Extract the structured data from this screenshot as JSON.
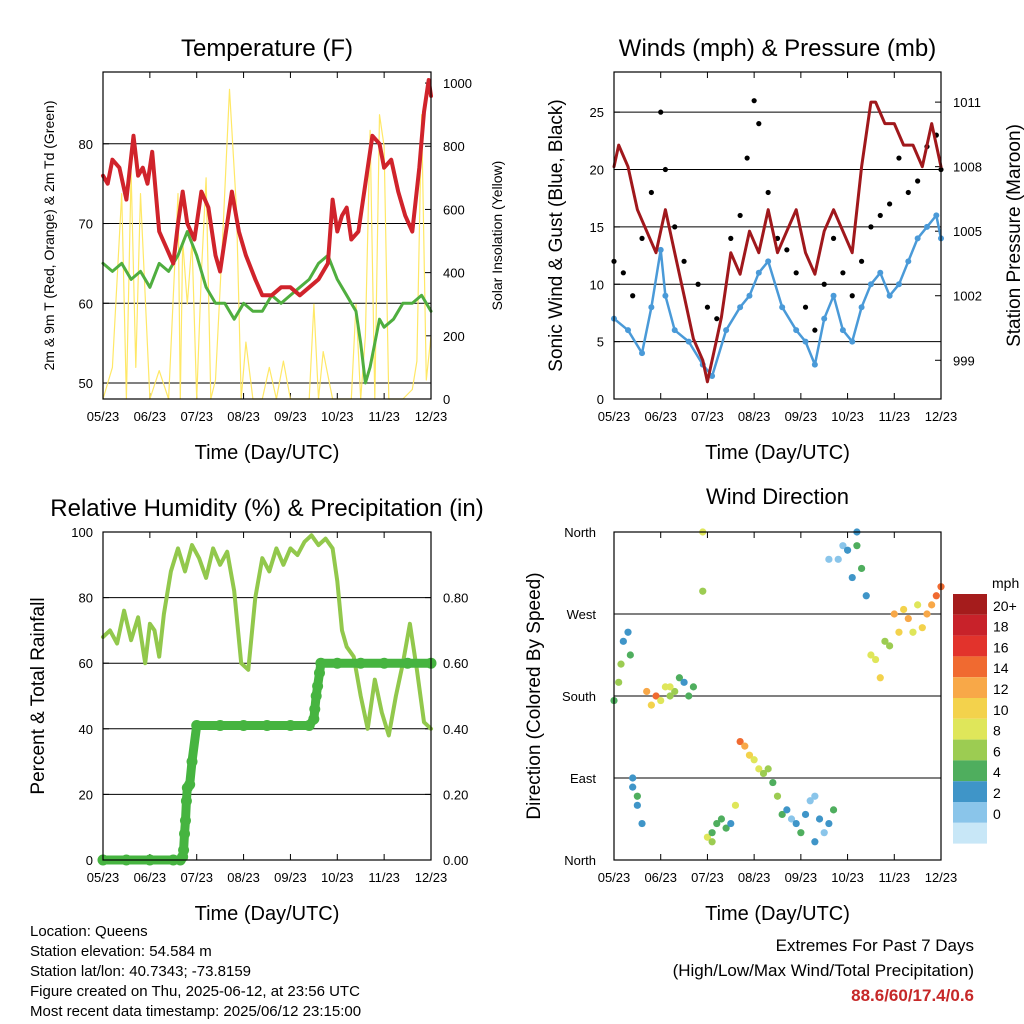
{
  "colors": {
    "temp": "#d0232b",
    "dew": "#4fae3f",
    "solar": "#ffe866",
    "wind": "#4a9ad8",
    "gust": "#000000",
    "pressure": "#a0181c",
    "rh": "#92c84c",
    "precip": "#46b440"
  },
  "x_ticks": [
    "05/23",
    "06/23",
    "07/23",
    "08/23",
    "09/23",
    "10/23",
    "11/23",
    "12/23"
  ],
  "chart_data": [
    {
      "id": "temperature",
      "type": "line",
      "title": "Temperature (F)",
      "xlabel": "Time (Day/UTC)",
      "ylabel": "2m & 9m T (Red, Orange) & 2m Td (Green)",
      "y2label": "Solar Insolation (Yellow)",
      "xlim": [
        0,
        7
      ],
      "ylim": [
        48,
        89
      ],
      "yticks": [
        "50",
        "60",
        "70",
        "80"
      ],
      "y2lim": [
        0,
        1035
      ],
      "y2ticks": [
        "0",
        "200",
        "400",
        "600",
        "800",
        "1000"
      ],
      "series": [
        {
          "role": "temperature",
          "x": [
            0,
            0.1,
            0.2,
            0.35,
            0.5,
            0.65,
            0.75,
            0.85,
            0.95,
            1.05,
            1.2,
            1.35,
            1.5,
            1.6,
            1.7,
            1.8,
            1.95,
            2.1,
            2.25,
            2.4,
            2.5,
            2.6,
            2.75,
            2.9,
            3.05,
            3.25,
            3.4,
            3.6,
            3.8,
            4.0,
            4.2,
            4.4,
            4.6,
            4.8,
            4.9,
            5.0,
            5.1,
            5.2,
            5.3,
            5.45,
            5.6,
            5.75,
            5.9,
            6.0,
            6.15,
            6.3,
            6.45,
            6.6,
            6.75,
            6.85,
            6.95,
            7.0
          ],
          "y": [
            76,
            75,
            78,
            77,
            73,
            81,
            76,
            77,
            75,
            79,
            69,
            67,
            65,
            70,
            74,
            70,
            68,
            74,
            72,
            66,
            64,
            68,
            74,
            69,
            66,
            63,
            61,
            61,
            62,
            62,
            61,
            62,
            63,
            65,
            73,
            69,
            71,
            72,
            68,
            69,
            75,
            81,
            80,
            77,
            78,
            74,
            71,
            69,
            77,
            84,
            88,
            86
          ]
        },
        {
          "role": "dewpoint",
          "x": [
            0,
            0.2,
            0.4,
            0.6,
            0.8,
            1.0,
            1.2,
            1.4,
            1.6,
            1.8,
            2.0,
            2.2,
            2.4,
            2.6,
            2.8,
            3.0,
            3.2,
            3.4,
            3.6,
            3.8,
            4.0,
            4.2,
            4.4,
            4.6,
            4.8,
            5.0,
            5.2,
            5.4,
            5.5,
            5.6,
            5.7,
            5.8,
            5.9,
            6.0,
            6.2,
            6.4,
            6.6,
            6.8,
            7.0
          ],
          "y": [
            65,
            64,
            65,
            63,
            64,
            62,
            65,
            64,
            66,
            69,
            66,
            62,
            60,
            60,
            58,
            60,
            59,
            59,
            61,
            60,
            61,
            62,
            63,
            65,
            66,
            63,
            61,
            59,
            55,
            50,
            52,
            55,
            58,
            57,
            58,
            60,
            60,
            61,
            59
          ]
        },
        {
          "role": "solar",
          "x": [
            0,
            0.2,
            0.4,
            0.5,
            0.6,
            0.7,
            0.8,
            1.0,
            1.2,
            1.4,
            1.6,
            1.65,
            1.7,
            1.8,
            1.9,
            2.0,
            2.1,
            2.2,
            2.3,
            2.4,
            2.55,
            2.7,
            2.85,
            2.95,
            3.05,
            3.2,
            3.4,
            3.55,
            3.7,
            3.85,
            4.0,
            4.2,
            4.4,
            4.5,
            4.6,
            4.7,
            4.9,
            5.1,
            5.3,
            5.4,
            5.5,
            5.6,
            5.7,
            5.8,
            5.9,
            6.0,
            6.1,
            6.2,
            6.4,
            6.6,
            6.7,
            6.8,
            6.9,
            7.0
          ],
          "y": [
            0,
            100,
            650,
            0,
            720,
            100,
            650,
            0,
            90,
            0,
            650,
            0,
            500,
            300,
            500,
            0,
            400,
            700,
            0,
            60,
            500,
            980,
            600,
            0,
            180,
            0,
            0,
            100,
            0,
            120,
            0,
            0,
            0,
            300,
            0,
            150,
            0,
            0,
            0,
            300,
            0,
            200,
            850,
            0,
            900,
            800,
            0,
            0,
            0,
            30,
            120,
            900,
            60,
            200
          ]
        }
      ]
    },
    {
      "id": "wind",
      "type": "scatter",
      "title": "Winds (mph) & Pressure (mb)",
      "xlabel": "Time (Day/UTC)",
      "ylabel": "Sonic Wind & Gust (Blue, Black)",
      "y2label": "Station Pressure (Maroon)",
      "xlim": [
        0,
        7
      ],
      "ylim": [
        0,
        28.5
      ],
      "yticks": [
        "0",
        "5",
        "10",
        "15",
        "20",
        "25"
      ],
      "y2lim": [
        997.2,
        1012.4
      ],
      "y2ticks": [
        "999",
        "1002",
        "1005",
        "1008",
        "1011"
      ],
      "series": [
        {
          "role": "sustained",
          "x": [
            0,
            0.3,
            0.6,
            0.8,
            1.0,
            1.1,
            1.3,
            1.6,
            1.9,
            2.1,
            2.4,
            2.7,
            2.9,
            3.1,
            3.3,
            3.6,
            3.9,
            4.1,
            4.3,
            4.5,
            4.7,
            4.9,
            5.1,
            5.3,
            5.5,
            5.7,
            5.9,
            6.1,
            6.3,
            6.5,
            6.7,
            6.9,
            7.0
          ],
          "y": [
            7,
            6,
            4,
            8,
            13,
            9,
            6,
            5,
            3,
            2,
            6,
            8,
            9,
            11,
            12,
            8,
            6,
            5,
            3,
            7,
            9,
            6,
            5,
            8,
            10,
            11,
            9,
            10,
            12,
            14,
            15,
            16,
            14
          ]
        },
        {
          "role": "gust",
          "x": [
            0,
            0.2,
            0.4,
            0.6,
            0.8,
            1.0,
            1.1,
            1.3,
            1.5,
            1.8,
            2.0,
            2.2,
            2.5,
            2.7,
            2.85,
            3.0,
            3.1,
            3.3,
            3.5,
            3.7,
            3.9,
            4.1,
            4.3,
            4.5,
            4.7,
            4.9,
            5.1,
            5.3,
            5.5,
            5.7,
            5.9,
            6.1,
            6.3,
            6.5,
            6.7,
            6.9,
            7.0
          ],
          "y": [
            12,
            11,
            9,
            14,
            18,
            25,
            20,
            15,
            12,
            10,
            8,
            7,
            14,
            16,
            21,
            26,
            24,
            18,
            14,
            13,
            11,
            8,
            6,
            10,
            14,
            11,
            9,
            12,
            15,
            16,
            17,
            21,
            18,
            19,
            22,
            23,
            20
          ]
        },
        {
          "role": "pressure",
          "x": [
            0,
            0.1,
            0.3,
            0.5,
            0.7,
            0.9,
            1.1,
            1.3,
            1.5,
            1.7,
            1.9,
            2.0,
            2.1,
            2.2,
            2.3,
            2.5,
            2.7,
            2.9,
            3.1,
            3.3,
            3.5,
            3.7,
            3.9,
            4.1,
            4.3,
            4.5,
            4.7,
            4.9,
            5.1,
            5.3,
            5.5,
            5.6,
            5.8,
            6.0,
            6.2,
            6.4,
            6.6,
            6.8,
            7.0
          ],
          "y": [
            1008,
            1009,
            1008,
            1006,
            1005,
            1004,
            1006,
            1004,
            1002,
            1000,
            999,
            998,
            999,
            1000,
            1001,
            1004,
            1003,
            1005,
            1004,
            1006,
            1004,
            1005,
            1006,
            1004,
            1003,
            1005,
            1006,
            1005,
            1004,
            1008,
            1011,
            1011,
            1010,
            1010,
            1009,
            1009,
            1008,
            1010,
            1008
          ]
        }
      ]
    },
    {
      "id": "humidity",
      "type": "line",
      "title": "Relative Humidity (%) & Precipitation (in)",
      "xlabel": "Time (Day/UTC)",
      "ylabel": "Percent & Total Rainfall",
      "xlim": [
        0,
        7
      ],
      "ylim": [
        0,
        100
      ],
      "yticks": [
        "0",
        "20",
        "40",
        "60",
        "80",
        "100"
      ],
      "y2lim": [
        0,
        1.0
      ],
      "y2ticks": [
        "0.00",
        "0.20",
        "0.40",
        "0.60",
        "0.80"
      ],
      "series": [
        {
          "role": "humidity",
          "x": [
            0,
            0.15,
            0.3,
            0.45,
            0.6,
            0.75,
            0.9,
            1.0,
            1.1,
            1.2,
            1.3,
            1.45,
            1.6,
            1.75,
            1.9,
            2.05,
            2.2,
            2.35,
            2.5,
            2.65,
            2.8,
            2.95,
            3.1,
            3.25,
            3.4,
            3.55,
            3.7,
            3.85,
            4.0,
            4.15,
            4.3,
            4.45,
            4.6,
            4.75,
            4.9,
            5.0,
            5.1,
            5.2,
            5.35,
            5.5,
            5.65,
            5.8,
            5.95,
            6.1,
            6.25,
            6.4,
            6.55,
            6.7,
            6.85,
            7.0
          ],
          "y": [
            68,
            70,
            66,
            76,
            67,
            74,
            60,
            72,
            70,
            62,
            75,
            88,
            95,
            88,
            96,
            92,
            86,
            95,
            90,
            94,
            82,
            60,
            58,
            80,
            92,
            88,
            95,
            90,
            95,
            93,
            97,
            99,
            96,
            98,
            95,
            85,
            70,
            65,
            62,
            50,
            40,
            55,
            45,
            38,
            50,
            60,
            72,
            58,
            42,
            40
          ]
        },
        {
          "role": "precipitation",
          "x": [
            0,
            0.5,
            1.0,
            1.5,
            1.65,
            1.7,
            1.72,
            1.74,
            1.76,
            1.78,
            1.8,
            1.85,
            1.9,
            2.0,
            2.5,
            3.0,
            3.5,
            4.0,
            4.4,
            4.5,
            4.52,
            4.55,
            4.58,
            4.62,
            4.65,
            5.0,
            5.5,
            6.0,
            6.5,
            7.0
          ],
          "y": [
            0,
            0,
            0,
            0,
            0,
            0.01,
            0.03,
            0.08,
            0.12,
            0.18,
            0.22,
            0.23,
            0.3,
            0.41,
            0.41,
            0.41,
            0.41,
            0.41,
            0.41,
            0.43,
            0.46,
            0.5,
            0.53,
            0.57,
            0.6,
            0.6,
            0.6,
            0.6,
            0.6,
            0.6
          ]
        }
      ]
    },
    {
      "id": "direction",
      "type": "scatter",
      "title": "Wind Direction",
      "xlabel": "Time (Day/UTC)",
      "ylabel": "Direction (Colored By Speed)",
      "xlim": [
        0,
        7
      ],
      "ylim": [
        0,
        360
      ],
      "yticks": [
        "North",
        "East",
        "South",
        "West",
        "North"
      ],
      "legend_title": "mph",
      "legend_labels": [
        "20+",
        "18",
        "16",
        "14",
        "12",
        "10",
        "8",
        "6",
        "4",
        "2",
        "0"
      ],
      "legend_colors": [
        "#a51c1c",
        "#c8222a",
        "#e2332c",
        "#f06a30",
        "#f8a848",
        "#f3d24c",
        "#dfe65a",
        "#9ccc52",
        "#4fae5e",
        "#3f95c8",
        "#8ac5ea",
        "#c8e7f7"
      ],
      "x": [
        0,
        0.1,
        0.15,
        0.2,
        0.3,
        0.35,
        0.4,
        0.5,
        0.6,
        0.7,
        0.8,
        0.9,
        1.0,
        1.1,
        1.2,
        1.3,
        1.4,
        1.5,
        1.6,
        1.7,
        1.9,
        2.0,
        2.1,
        2.2,
        2.3,
        2.4,
        2.5,
        2.6,
        2.7,
        2.8,
        2.9,
        3.0,
        3.1,
        3.2,
        3.3,
        3.4,
        3.5,
        3.6,
        3.7,
        3.8,
        3.9,
        4.0,
        4.1,
        4.2,
        4.3,
        4.4,
        4.5,
        4.6,
        4.7,
        4.8,
        4.9,
        5.0,
        5.1,
        5.2,
        5.3,
        5.4,
        5.5,
        5.6,
        5.7,
        5.8,
        5.9,
        6.0,
        6.1,
        6.2,
        6.3,
        6.4,
        6.5,
        6.6,
        6.7,
        6.8,
        6.9,
        7.0,
        0.4,
        0.5,
        1.2,
        2.1,
        4.3,
        4.6,
        5.2,
        1.9
      ],
      "y": [
        175,
        195,
        215,
        240,
        250,
        225,
        90,
        70,
        40,
        185,
        170,
        180,
        175,
        190,
        180,
        185,
        200,
        195,
        180,
        190,
        360,
        25,
        20,
        40,
        45,
        35,
        40,
        60,
        130,
        125,
        115,
        110,
        100,
        95,
        100,
        85,
        70,
        50,
        55,
        45,
        40,
        30,
        50,
        65,
        70,
        45,
        30,
        40,
        55,
        330,
        345,
        340,
        310,
        345,
        320,
        290,
        225,
        220,
        200,
        240,
        235,
        270,
        250,
        275,
        265,
        250,
        280,
        255,
        270,
        280,
        290,
        300,
        80,
        60,
        190,
        30,
        20,
        330,
        360,
        295
      ],
      "speed": [
        6,
        7,
        8,
        4,
        3,
        5,
        4,
        5,
        3,
        14,
        12,
        15,
        10,
        9,
        7,
        8,
        6,
        4,
        6,
        5,
        10,
        10,
        8,
        6,
        5,
        6,
        4,
        10,
        15,
        14,
        12,
        10,
        9,
        8,
        7,
        6,
        8,
        5,
        3,
        2,
        4,
        5,
        3,
        2,
        2,
        3,
        2,
        4,
        5,
        2,
        1,
        4,
        3,
        6,
        5,
        4,
        10,
        9,
        12,
        7,
        8,
        13,
        12,
        11,
        14,
        10,
        9,
        12,
        13,
        14,
        15,
        16,
        3,
        4,
        9,
        6,
        3,
        2,
        4,
        8
      ]
    }
  ],
  "info": {
    "location": "Location: Queens",
    "elevation": "Station elevation: 54.584 m",
    "latlon": "Station lat/lon: 40.7343; -73.8159",
    "created": "Figure created on Thu, 2025-06-12, at 23:56 UTC",
    "recent": "Most recent data timestamp: 2025/06/12 23:15:00"
  },
  "extremes": {
    "line1": "Extremes For Past 7 Days",
    "line2": "(High/Low/Max Wind/Total Precipitation)",
    "values": "88.6/60/17.4/0.6"
  }
}
